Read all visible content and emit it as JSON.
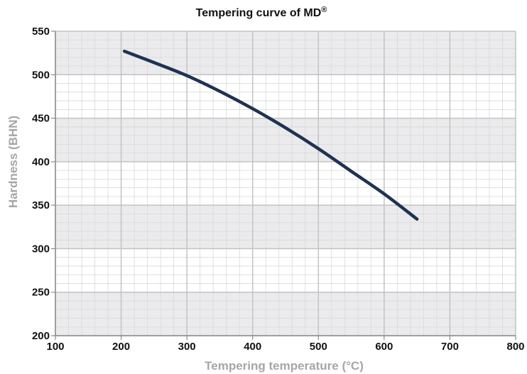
{
  "chart_data": {
    "type": "line",
    "title": "Tempering curve of MD",
    "title_superscript": "®",
    "xlabel": "Tempering temperature (°C)",
    "ylabel": "Hardness (BHN)",
    "xlim": [
      100,
      800
    ],
    "ylim": [
      200,
      550
    ],
    "x_ticks": [
      100,
      200,
      300,
      400,
      500,
      600,
      700,
      800
    ],
    "y_ticks": [
      200,
      250,
      300,
      350,
      400,
      450,
      500,
      550
    ],
    "x_minor_step": 20,
    "y_minor_step": 10,
    "grid": true,
    "shaded_bands_y": [
      [
        200,
        250
      ],
      [
        300,
        350
      ],
      [
        400,
        450
      ],
      [
        500,
        550
      ]
    ],
    "series": [
      {
        "x": [
          205,
          250,
          300,
          350,
          400,
          450,
          500,
          550,
          600,
          650
        ],
        "y": [
          527,
          514,
          499,
          481,
          461,
          439,
          415,
          389,
          363,
          334
        ],
        "color": "#1e3353"
      }
    ]
  },
  "colors": {
    "band": "#ebebed",
    "major_grid": "#c3c3c3",
    "minor_grid": "#d9d9d9",
    "axis": "#8c8c8c",
    "line": "#1e3353"
  }
}
